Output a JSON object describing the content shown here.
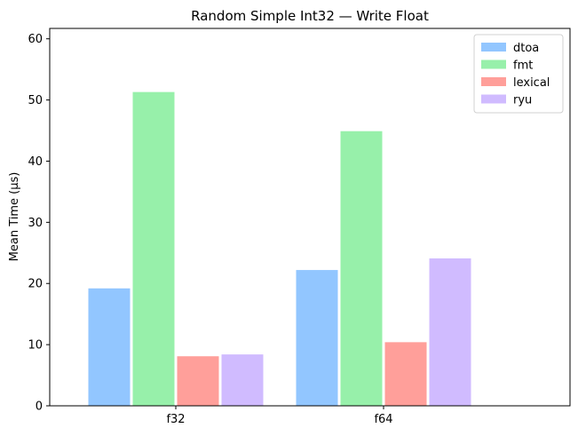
{
  "chart_data": {
    "type": "bar",
    "title": "Random Simple Int32 — Write Float",
    "xlabel": "",
    "ylabel": "Mean Time (µs)",
    "categories": [
      "f32",
      "f64"
    ],
    "ylim": [
      0,
      61.7
    ],
    "yticks": [
      0,
      10,
      20,
      30,
      40,
      50,
      60
    ],
    "grid": false,
    "legend_position": "top-right",
    "series": [
      {
        "name": "dtoa",
        "color": "#92c6ff",
        "values": [
          19.2,
          22.2
        ]
      },
      {
        "name": "fmt",
        "color": "#97f0aa",
        "values": [
          51.3,
          44.9
        ]
      },
      {
        "name": "lexical",
        "color": "#ff9f9a",
        "values": [
          8.1,
          10.4
        ]
      },
      {
        "name": "ryu",
        "color": "#d0bbff",
        "values": [
          8.4,
          24.1
        ]
      }
    ]
  }
}
